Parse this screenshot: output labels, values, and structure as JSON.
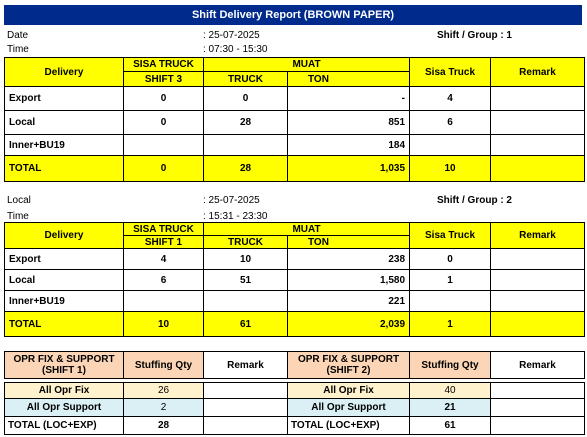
{
  "title": "Shift Delivery Report (BROWN PAPER)",
  "headers": {
    "delivery": "Delivery",
    "sisa_truck": "SISA TRUCK",
    "muat": "MUAT",
    "truck": "TRUCK",
    "ton": "TON",
    "sisa_truck_right": "Sisa Truck",
    "remark": "Remark"
  },
  "shift1": {
    "date_label": "Date",
    "date_value": ": 25-07-2025",
    "time_label": "Time",
    "time_value": ":  07:30 - 15:30",
    "shift_group": "Shift / Group : 1",
    "prev_shift": "SHIFT 3",
    "rows": [
      {
        "name": "Export",
        "sisa": "0",
        "truck": "0",
        "ton": "-",
        "sisa_right": "4",
        "remark": ""
      },
      {
        "name": "Local",
        "sisa": "0",
        "truck": "28",
        "ton": "851",
        "sisa_right": "6",
        "remark": ""
      },
      {
        "name": "Inner+BU19",
        "sisa": "",
        "truck": "",
        "ton": "184",
        "sisa_right": "",
        "remark": ""
      }
    ],
    "total": {
      "name": "TOTAL",
      "sisa": "0",
      "truck": "28",
      "ton": "1,035",
      "sisa_right": "10",
      "remark": ""
    }
  },
  "shift2": {
    "date_label": "Local",
    "date_value": ": 25-07-2025",
    "time_label": "Time",
    "time_value": ": 15:31 - 23:30",
    "shift_group": "Shift / Group :  2",
    "prev_shift": "SHIFT 1",
    "rows": [
      {
        "name": "Export",
        "sisa": "4",
        "truck": "10",
        "ton": "238",
        "sisa_right": "0",
        "remark": ""
      },
      {
        "name": "Local",
        "sisa": "6",
        "truck": "51",
        "ton": "1,580",
        "sisa_right": "1",
        "remark": ""
      },
      {
        "name": "Inner+BU19",
        "sisa": "",
        "truck": "",
        "ton": "221",
        "sisa_right": "",
        "remark": ""
      }
    ],
    "total": {
      "name": "TOTAL",
      "sisa": "10",
      "truck": "61",
      "ton": "2,039",
      "sisa_right": "1",
      "remark": ""
    }
  },
  "stuffing": {
    "left": {
      "header": "OPR FIX & SUPPORT (SHIFT 1)",
      "qty_header": "Stuffing Qty",
      "remark_header": "Remark",
      "fix_label": "All Opr Fix",
      "fix_value": "26",
      "support_label": "All Opr Support",
      "support_value": "2",
      "total_label": "TOTAL (LOC+EXP)",
      "total_value": "28"
    },
    "right": {
      "header": "OPR FIX & SUPPORT (SHIFT 2)",
      "qty_header": "Stuffing Qty",
      "remark_header": "Remark",
      "fix_label": "All Opr Fix",
      "fix_value": "40",
      "support_label": "All Opr Support",
      "support_value": "21",
      "total_label": "TOTAL (LOC+EXP)",
      "total_value": "61"
    }
  }
}
